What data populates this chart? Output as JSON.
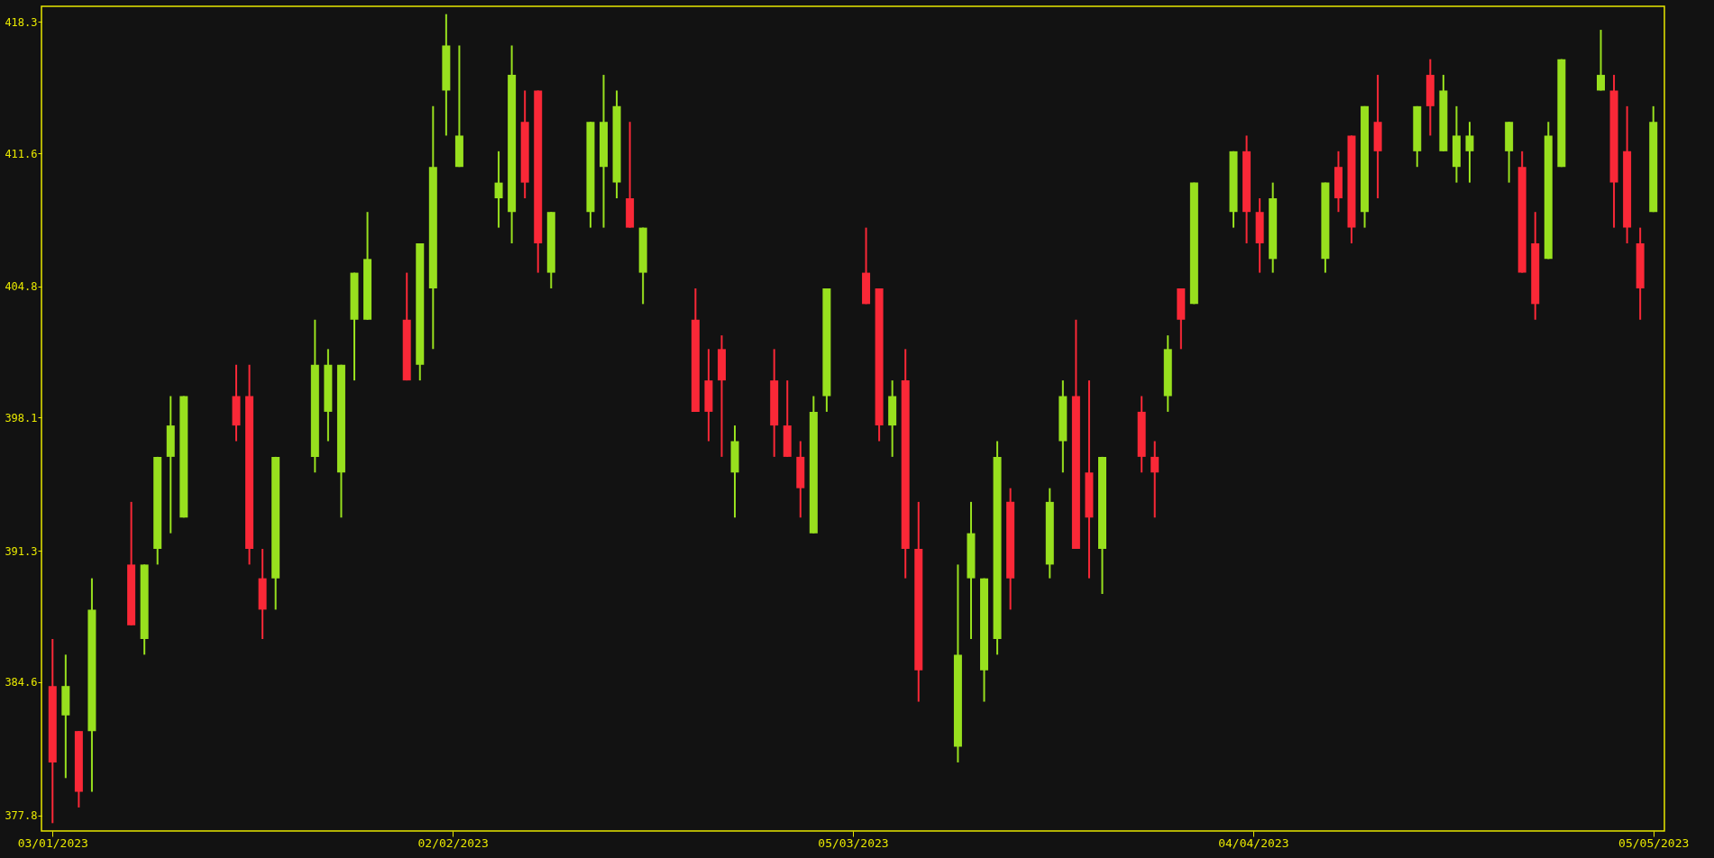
{
  "chart_data": {
    "type": "candlestick",
    "x": [
      "2023-01-03",
      "2023-01-04",
      "2023-01-05",
      "2023-01-06",
      "2023-01-09",
      "2023-01-10",
      "2023-01-11",
      "2023-01-12",
      "2023-01-13",
      "2023-01-17",
      "2023-01-18",
      "2023-01-19",
      "2023-01-20",
      "2023-01-23",
      "2023-01-24",
      "2023-01-25",
      "2023-01-26",
      "2023-01-27",
      "2023-01-30",
      "2023-01-31",
      "2023-02-01",
      "2023-02-02",
      "2023-02-03",
      "2023-02-06",
      "2023-02-07",
      "2023-02-08",
      "2023-02-09",
      "2023-02-10",
      "2023-02-13",
      "2023-02-14",
      "2023-02-15",
      "2023-02-16",
      "2023-02-17",
      "2023-02-21",
      "2023-02-22",
      "2023-02-23",
      "2023-02-24",
      "2023-02-27",
      "2023-02-28",
      "2023-03-01",
      "2023-03-02",
      "2023-03-03",
      "2023-03-06",
      "2023-03-07",
      "2023-03-08",
      "2023-03-09",
      "2023-03-10",
      "2023-03-13",
      "2023-03-14",
      "2023-03-15",
      "2023-03-16",
      "2023-03-17",
      "2023-03-20",
      "2023-03-21",
      "2023-03-22",
      "2023-03-23",
      "2023-03-24",
      "2023-03-27",
      "2023-03-28",
      "2023-03-29",
      "2023-03-30",
      "2023-03-31",
      "2023-04-03",
      "2023-04-04",
      "2023-04-05",
      "2023-04-06",
      "2023-04-10",
      "2023-04-11",
      "2023-04-12",
      "2023-04-13",
      "2023-04-14",
      "2023-04-17",
      "2023-04-18",
      "2023-04-19",
      "2023-04-20",
      "2023-04-21",
      "2023-04-24",
      "2023-04-25",
      "2023-04-26",
      "2023-04-27",
      "2023-04-28",
      "2023-05-01",
      "2023-05-02",
      "2023-05-03",
      "2023-05-04",
      "2023-05-05"
    ],
    "ohlc": [
      [
        384.4,
        386.8,
        377.4,
        380.5
      ],
      [
        382.9,
        386.0,
        379.7,
        384.4
      ],
      [
        382.1,
        382.1,
        378.2,
        379.0
      ],
      [
        382.1,
        389.9,
        379.0,
        388.3
      ],
      [
        390.6,
        393.8,
        387.5,
        387.5
      ],
      [
        386.8,
        390.6,
        386.0,
        390.6
      ],
      [
        391.4,
        396.1,
        390.6,
        396.1
      ],
      [
        396.1,
        399.2,
        392.2,
        397.7
      ],
      [
        393.0,
        399.2,
        393.0,
        399.2
      ],
      [
        399.2,
        400.8,
        396.9,
        397.7
      ],
      [
        399.2,
        400.8,
        390.6,
        391.4
      ],
      [
        389.9,
        391.4,
        386.8,
        388.3
      ],
      [
        389.9,
        396.1,
        388.3,
        396.1
      ],
      [
        396.1,
        403.1,
        395.3,
        400.8
      ],
      [
        398.4,
        401.6,
        396.9,
        400.8
      ],
      [
        395.3,
        400.8,
        393.0,
        400.8
      ],
      [
        403.1,
        405.5,
        400.0,
        405.5
      ],
      [
        403.1,
        408.6,
        403.1,
        406.2
      ],
      [
        403.1,
        405.5,
        400.0,
        400.0
      ],
      [
        400.8,
        407.0,
        400.0,
        407.0
      ],
      [
        404.7,
        414.0,
        401.6,
        410.9
      ],
      [
        414.8,
        418.7,
        412.5,
        417.1
      ],
      [
        410.9,
        417.1,
        410.9,
        412.5
      ],
      [
        409.3,
        411.7,
        407.8,
        410.1
      ],
      [
        408.6,
        417.1,
        407.0,
        415.6
      ],
      [
        413.2,
        414.8,
        409.3,
        410.1
      ],
      [
        414.8,
        414.8,
        405.5,
        407.0
      ],
      [
        405.5,
        408.6,
        404.7,
        408.6
      ],
      [
        408.6,
        413.2,
        407.8,
        413.2
      ],
      [
        410.9,
        415.6,
        407.8,
        413.2
      ],
      [
        410.1,
        414.8,
        409.3,
        414.0
      ],
      [
        409.3,
        413.2,
        407.8,
        407.8
      ],
      [
        405.5,
        407.8,
        403.9,
        407.8
      ],
      [
        403.1,
        404.7,
        398.4,
        398.4
      ],
      [
        400.0,
        401.6,
        396.9,
        398.4
      ],
      [
        401.6,
        402.3,
        396.1,
        400.0
      ],
      [
        395.3,
        397.7,
        393.0,
        396.9
      ],
      [
        400.0,
        401.6,
        396.1,
        397.7
      ],
      [
        397.7,
        400.0,
        396.1,
        396.1
      ],
      [
        396.1,
        396.9,
        393.0,
        394.5
      ],
      [
        392.2,
        399.2,
        392.2,
        398.4
      ],
      [
        399.2,
        404.7,
        398.4,
        404.7
      ],
      [
        405.5,
        407.8,
        403.9,
        403.9
      ],
      [
        404.7,
        404.7,
        396.9,
        397.7
      ],
      [
        397.7,
        400.0,
        396.1,
        399.2
      ],
      [
        400.0,
        401.6,
        389.9,
        391.4
      ],
      [
        391.4,
        393.8,
        383.6,
        385.2
      ],
      [
        381.3,
        390.6,
        380.5,
        386.0
      ],
      [
        389.9,
        393.8,
        386.8,
        392.2
      ],
      [
        385.2,
        389.9,
        383.6,
        389.9
      ],
      [
        386.8,
        396.9,
        386.0,
        396.1
      ],
      [
        393.8,
        394.5,
        388.3,
        389.9
      ],
      [
        390.6,
        394.5,
        389.9,
        393.8
      ],
      [
        396.9,
        400.0,
        395.3,
        399.2
      ],
      [
        399.2,
        403.1,
        391.4,
        391.4
      ],
      [
        395.3,
        400.0,
        389.9,
        393.0
      ],
      [
        391.4,
        396.1,
        389.1,
        396.1
      ],
      [
        398.4,
        399.2,
        395.3,
        396.1
      ],
      [
        396.1,
        396.9,
        393.0,
        395.3
      ],
      [
        399.2,
        402.3,
        398.4,
        401.6
      ],
      [
        404.7,
        404.7,
        401.6,
        403.1
      ],
      [
        403.9,
        410.1,
        403.9,
        410.1
      ],
      [
        408.6,
        411.7,
        407.8,
        411.7
      ],
      [
        411.7,
        412.5,
        407.0,
        408.6
      ],
      [
        408.6,
        409.3,
        405.5,
        407.0
      ],
      [
        406.2,
        410.1,
        405.5,
        409.3
      ],
      [
        406.2,
        410.1,
        405.5,
        410.1
      ],
      [
        410.9,
        411.7,
        408.6,
        409.3
      ],
      [
        412.5,
        412.5,
        407.0,
        407.8
      ],
      [
        408.6,
        414.0,
        407.8,
        414.0
      ],
      [
        413.2,
        415.6,
        409.3,
        411.7
      ],
      [
        411.7,
        414.0,
        410.9,
        414.0
      ],
      [
        415.6,
        416.4,
        412.5,
        414.0
      ],
      [
        411.7,
        415.6,
        411.7,
        414.8
      ],
      [
        410.9,
        414.0,
        410.1,
        412.5
      ],
      [
        411.7,
        413.2,
        410.1,
        412.5
      ],
      [
        411.7,
        413.2,
        410.1,
        413.2
      ],
      [
        410.9,
        411.7,
        405.5,
        405.5
      ],
      [
        407.0,
        408.6,
        403.1,
        403.9
      ],
      [
        406.2,
        413.2,
        406.2,
        412.5
      ],
      [
        410.9,
        416.4,
        410.9,
        416.4
      ],
      [
        414.8,
        417.9,
        414.8,
        415.6
      ],
      [
        414.8,
        415.6,
        407.8,
        410.1
      ],
      [
        411.7,
        414.0,
        407.0,
        407.8
      ],
      [
        407.0,
        407.8,
        403.1,
        404.7
      ],
      [
        408.6,
        414.0,
        408.6,
        413.2
      ]
    ],
    "colors": [
      "#fa2837",
      "#98e01e",
      "#fa2837",
      "#98e01e",
      "#fa2837",
      "#98e01e",
      "#98e01e",
      "#98e01e",
      "#98e01e",
      "#fa2837",
      "#fa2837",
      "#fa2837",
      "#98e01e",
      "#98e01e",
      "#98e01e",
      "#98e01e",
      "#98e01e",
      "#98e01e",
      "#fa2837",
      "#98e01e",
      "#98e01e",
      "#98e01e",
      "#98e01e",
      "#98e01e",
      "#98e01e",
      "#fa2837",
      "#fa2837",
      "#98e01e",
      "#98e01e",
      "#98e01e",
      "#98e01e",
      "#fa2837",
      "#98e01e",
      "#fa2837",
      "#fa2837",
      "#fa2837",
      "#98e01e",
      "#fa2837",
      "#fa2837",
      "#fa2837",
      "#98e01e",
      "#98e01e",
      "#fa2837",
      "#fa2837",
      "#98e01e",
      "#fa2837",
      "#fa2837",
      "#98e01e",
      "#98e01e",
      "#98e01e",
      "#98e01e",
      "#fa2837",
      "#98e01e",
      "#98e01e",
      "#fa2837",
      "#fa2837",
      "#98e01e",
      "#fa2837",
      "#fa2837",
      "#98e01e",
      "#fa2837",
      "#98e01e",
      "#98e01e",
      "#fa2837",
      "#fa2837",
      "#98e01e",
      "#98e01e",
      "#fa2837",
      "#fa2837",
      "#98e01e",
      "#fa2837",
      "#98e01e",
      "#fa2837",
      "#98e01e",
      "#98e01e",
      "#98e01e",
      "#98e01e",
      "#fa2837",
      "#fa2837",
      "#98e01e",
      "#98e01e",
      "#98e01e",
      "#fa2837",
      "#fa2837",
      "#fa2837",
      "#98e01e"
    ],
    "xlim": [
      "2023-01-02T12:00",
      "2023-05-05T12:00"
    ],
    "xticks": [
      {
        "value": "2023-01-03",
        "label": "03/01/2023"
      },
      {
        "value": "2023-02-02T12:00",
        "label": "02/02/2023"
      },
      {
        "value": "2023-03-05",
        "label": "05/03/2023"
      },
      {
        "value": "2023-04-04T12:00",
        "label": "04/04/2023"
      },
      {
        "value": "2023-05-05",
        "label": "05/05/2023"
      }
    ],
    "ylim": [
      377.0,
      419.1
    ],
    "yticks": [
      377.8,
      384.6,
      391.3,
      398.1,
      404.8,
      411.6,
      418.3
    ]
  }
}
